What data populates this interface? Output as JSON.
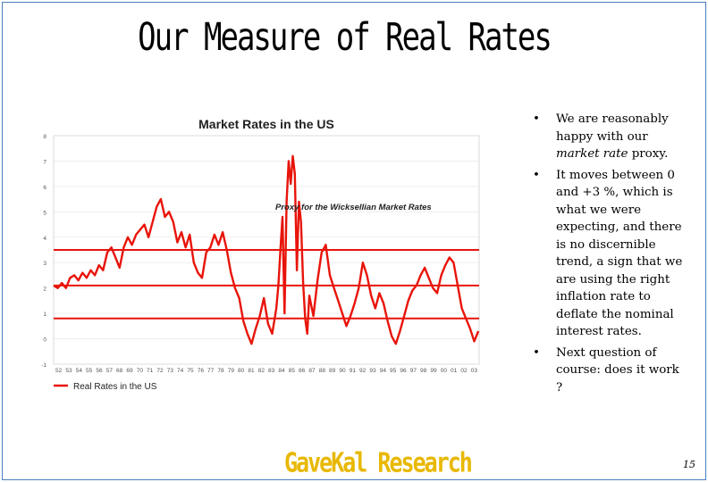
{
  "slide": {
    "title": "Our Measure of Real Rates",
    "footer_logo": "GaveKal Research",
    "page_number": "15"
  },
  "bullets": [
    {
      "segments": [
        {
          "text": "We are reasonably happy with our ",
          "italic": false
        },
        {
          "text": "market rate",
          "italic": true
        },
        {
          "text": " proxy.",
          "italic": false
        }
      ]
    },
    {
      "segments": [
        {
          "text": "It moves between 0 and +3 %, which is what we were expecting, and there is no discernible trend, a sign that we are using the right inflation rate to deflate the nominal interest rates.",
          "italic": false
        }
      ]
    },
    {
      "segments": [
        {
          "text": "Next question of course: does it work ?",
          "italic": false
        }
      ]
    }
  ],
  "bullet_marker": "•",
  "chart_data": {
    "type": "line",
    "title": "Market Rates in the US",
    "annotation": "Proxy for the Wicksellian Market Rates",
    "legend_position": "bottom-left",
    "ylim": [
      -1,
      8
    ],
    "y_ticks": [
      "-1",
      "0",
      "1",
      "2",
      "3",
      "4",
      "5",
      "6",
      "7",
      "8"
    ],
    "x_ticks": [
      "52",
      "53",
      "54",
      "55",
      "56",
      "57",
      "68",
      "69",
      "70",
      "71",
      "72",
      "73",
      "74",
      "75",
      "76",
      "77",
      "78",
      "79",
      "80",
      "81",
      "82",
      "83",
      "84",
      "85",
      "86",
      "87",
      "88",
      "89",
      "90",
      "91",
      "92",
      "93",
      "94",
      "95",
      "96",
      "97",
      "98",
      "99",
      "00",
      "01",
      "02",
      "03"
    ],
    "reference_lines": [
      0.8,
      2.1,
      3.5
    ],
    "reference_line_color": "#e8140a",
    "series": [
      {
        "name": "Real Rates in the US",
        "color": "#e8140a",
        "x": [
          1952.0,
          1952.5,
          1953.0,
          1953.5,
          1954.0,
          1954.5,
          1955.0,
          1955.5,
          1956.0,
          1956.5,
          1957.0,
          1957.5,
          1958.0,
          1958.5,
          1959.0,
          1959.5,
          1960.0,
          1960.5,
          1961.0,
          1961.5,
          1962.0,
          1962.5,
          1963.0,
          1963.5,
          1964.0,
          1964.5,
          1965.0,
          1965.5,
          1966.0,
          1966.5,
          1967.0,
          1967.5,
          1968.0,
          1968.5,
          1969.0,
          1969.5,
          1970.0,
          1970.5,
          1971.0,
          1971.5,
          1972.0,
          1972.5,
          1973.0,
          1973.5,
          1974.0,
          1974.5,
          1975.0,
          1975.5,
          1976.0,
          1976.5,
          1977.0,
          1977.5,
          1978.0,
          1978.5,
          1979.0,
          1979.25,
          1979.5,
          1979.75,
          1980.0,
          1980.25,
          1980.5,
          1980.75,
          1981.0,
          1981.25,
          1981.5,
          1981.75,
          1982.0,
          1982.25,
          1982.5,
          1982.75,
          1983.0,
          1983.5,
          1984.0,
          1984.5,
          1985.0,
          1985.5,
          1986.0,
          1986.5,
          1987.0,
          1987.5,
          1988.0,
          1988.5,
          1989.0,
          1989.5,
          1990.0,
          1990.5,
          1991.0,
          1991.5,
          1992.0,
          1992.5,
          1993.0,
          1993.5,
          1994.0,
          1994.5,
          1995.0,
          1995.5,
          1996.0,
          1996.5,
          1997.0,
          1997.5,
          1998.0,
          1998.5,
          1999.0,
          1999.5,
          2000.0,
          2000.5,
          2001.0,
          2001.5,
          2002.0,
          2002.5,
          2003.0,
          2003.5
        ],
        "values": [
          2.1,
          2.0,
          2.2,
          2.0,
          2.4,
          2.5,
          2.3,
          2.6,
          2.4,
          2.7,
          2.5,
          2.9,
          2.7,
          3.4,
          3.6,
          3.2,
          2.8,
          3.6,
          4.0,
          3.7,
          4.1,
          4.3,
          4.5,
          4.0,
          4.6,
          5.2,
          5.5,
          4.8,
          5.0,
          4.6,
          3.8,
          4.2,
          3.6,
          4.1,
          3.0,
          2.6,
          2.4,
          3.4,
          3.6,
          4.1,
          3.7,
          4.2,
          3.5,
          2.6,
          2.0,
          1.6,
          0.7,
          0.2,
          -0.2,
          0.4,
          0.9,
          1.6,
          0.6,
          0.2,
          1.2,
          2.1,
          3.5,
          4.8,
          1.0,
          5.4,
          7.0,
          6.1,
          7.2,
          6.5,
          2.7,
          5.4,
          4.6,
          2.2,
          0.8,
          0.2,
          1.7,
          0.9,
          2.3,
          3.4,
          3.7,
          2.5,
          2.0,
          1.5,
          1.0,
          0.5,
          0.9,
          1.4,
          2.0,
          3.0,
          2.5,
          1.7,
          1.2,
          1.8,
          1.4,
          0.7,
          0.1,
          -0.2,
          0.3,
          0.9,
          1.5,
          1.9,
          2.1,
          2.5,
          2.8,
          2.4,
          2.0,
          1.8,
          2.5,
          2.9,
          3.2,
          3.0,
          2.1,
          1.2,
          0.8,
          0.4,
          -0.1,
          0.3
        ]
      }
    ]
  }
}
